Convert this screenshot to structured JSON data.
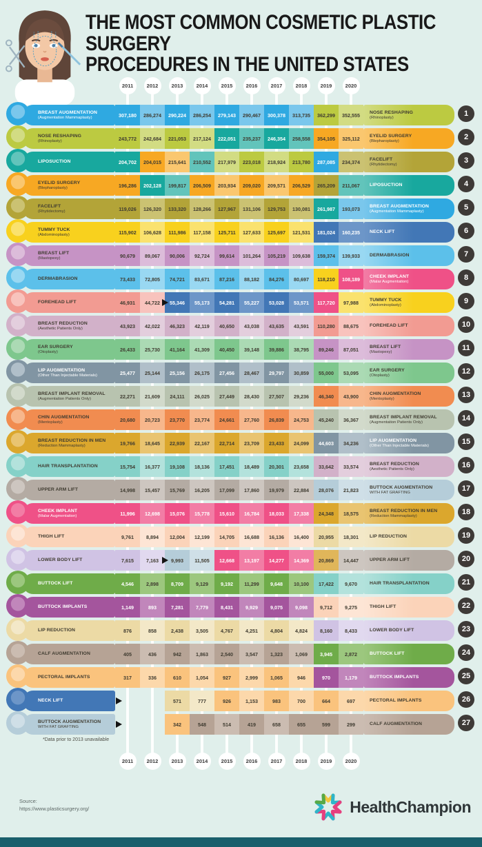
{
  "title": {
    "line1": "THE MOST COMMON COSMETIC PLASTIC SURGERY",
    "line2": "PROCEDURES IN THE UNITED STATES"
  },
  "years": [
    "2011",
    "2012",
    "2013",
    "2014",
    "2015",
    "2016",
    "2017",
    "2018",
    "2019",
    "2020"
  ],
  "footnote": "*Data prior to 2013 unavailable",
  "source": {
    "label": "Source:",
    "url": "https://www.plasticsurgery.org/"
  },
  "brand": {
    "name": "HealthChampion"
  },
  "colors": {
    "background": "#e0efeb",
    "footer_bar": "#1a5f6c",
    "rank_badge": "#3e3a37",
    "column_line": "#ffffff"
  },
  "chart_data": {
    "type": "table",
    "title": "The Most Common Cosmetic Plastic Surgery Procedures in the United States",
    "years": [
      "2011",
      "2012",
      "2013",
      "2014",
      "2015",
      "2016",
      "2017",
      "2018",
      "2019",
      "2020"
    ],
    "note": "Bump-ranking chart: each row is a rank lane; left label = procedure at that rank in 2011, right label + number = procedure at that rank in 2020. Cell values are annual procedure counts shown in each lane.",
    "rows": [
      {
        "rank": 1,
        "icon": "breast-augmentation-icon",
        "name": "BREAST AUGMENTATION",
        "sub": "(Augmentation Mammaplasty)",
        "right_name": "NOSE RESHAPING",
        "right_sub": "(Rhinoplasty)",
        "color": "#2fa9e1",
        "light": "#7ac7ec",
        "right_color": "#bcca41",
        "right_light": "#d2dc83",
        "values": [
          "307,180",
          "286,274",
          "290,224",
          "286,254",
          "279,143",
          "290,467",
          "300,378",
          "313,735",
          "362,299",
          "352,555"
        ]
      },
      {
        "rank": 2,
        "icon": "nose-reshaping-icon",
        "name": "NOSE RESHAPING",
        "sub": "(Rhinoplasty)",
        "right_name": "EYELID SURGERY",
        "right_sub": "(Blepharoplasty)",
        "color": "#bcca41",
        "light": "#d2dc83",
        "right_color": "#f7a823",
        "right_light": "#fac76f",
        "values": [
          "243,772",
          "242,684",
          "221,053",
          "217,124",
          "222,051",
          "235,237",
          "246,354",
          "258,558",
          "354,105",
          "325,112"
        ],
        "cells": [
          "#bcca41",
          "#d2dc83",
          "#bcca41",
          "#d2dc83",
          "#18a89e",
          "#62c4bb",
          "#18a89e",
          "#62c4bb",
          "#f7a823",
          "#fac76f"
        ]
      },
      {
        "rank": 3,
        "icon": "liposuction-icon",
        "name": "LIPOSUCTION",
        "sub": "",
        "right_name": "FACELIFT",
        "right_sub": "(Rhytidectomy)",
        "color": "#18a89e",
        "light": "#62c4bb",
        "right_color": "#b3a438",
        "right_light": "#cbc272",
        "values": [
          "204,702",
          "204,015",
          "215,641",
          "210,552",
          "217,979",
          "223,018",
          "218,924",
          "213,780",
          "287,085",
          "234,374"
        ],
        "cells": [
          "#18a89e",
          "#f7a823",
          "#fac76f",
          "#62c4bb",
          "#d2dc83",
          "#bcca41",
          "#d2dc83",
          "#bcca41",
          "#2fa9e1",
          "#cbc272"
        ]
      },
      {
        "rank": 4,
        "icon": "eyelid-surgery-icon",
        "name": "EYELID SURGERY",
        "sub": "(Blepharoplasty)",
        "right_name": "LIPOSUCTION",
        "right_sub": "",
        "color": "#f7a823",
        "light": "#fac76f",
        "right_color": "#18a89e",
        "right_light": "#62c4bb",
        "values": [
          "196,286",
          "202,128",
          "199,817",
          "206,509",
          "203,934",
          "209,020",
          "209,571",
          "206,529",
          "265,209",
          "211,067"
        ],
        "cells": [
          "#f7a823",
          "#18a89e",
          "#62c4bb",
          "#f7a823",
          "#fac76f",
          "#f7a823",
          "#fac76f",
          "#f7a823",
          "#b3a438",
          "#62c4bb"
        ]
      },
      {
        "rank": 5,
        "icon": "facelift-icon",
        "name": "FACELIFT",
        "sub": "(Rhytidectomy)",
        "right_name": "BREAST AUGMENTATION",
        "right_sub": "(Augmentation Mammaplasty)",
        "color": "#b3a438",
        "light": "#cbc272",
        "right_color": "#2fa9e1",
        "right_light": "#7ac7ec",
        "values": [
          "119,026",
          "126,320",
          "133,320",
          "128,266",
          "127,967",
          "131,106",
          "129,753",
          "130,081",
          "261,987",
          "193,073"
        ],
        "cells": [
          "#b3a438",
          "#cbc272",
          "#b3a438",
          "#cbc272",
          "#b3a438",
          "#cbc272",
          "#b3a438",
          "#cbc272",
          "#18a89e",
          "#7ac7ec"
        ]
      },
      {
        "rank": 6,
        "icon": "tummy-tuck-icon",
        "name": "TUMMY TUCK",
        "sub": "(Abdominoplasty)",
        "right_name": "NECK LIFT",
        "right_sub": "",
        "color": "#f8d11e",
        "light": "#fae26e",
        "right_color": "#4277b6",
        "right_light": "#6d96c8",
        "values": [
          "115,902",
          "106,628",
          "111,986",
          "117,158",
          "125,711",
          "127,633",
          "125,697",
          "121,531",
          "181,024",
          "160,235"
        ]
      },
      {
        "rank": 7,
        "icon": "breast-lift-icon",
        "name": "BREAST LIFT",
        "sub": "(Mastopexy)",
        "right_name": "DERMABRASION",
        "right_sub": "",
        "color": "#c693c5",
        "light": "#dcbcda",
        "right_color": "#5cc0ea",
        "right_light": "#99d8f2",
        "values": [
          "90,679",
          "89,067",
          "90,006",
          "92,724",
          "99,614",
          "101,264",
          "105,219",
          "109,638",
          "159,374",
          "139,933"
        ]
      },
      {
        "rank": 8,
        "icon": "dermabrasion-icon",
        "name": "DERMABRASION",
        "sub": "",
        "right_name": "CHEEK IMPLANT",
        "right_sub": "(Malar Augmentation)",
        "color": "#5cc0ea",
        "light": "#99d8f2",
        "right_color": "#ef5187",
        "right_light": "#f27da5",
        "values": [
          "73,433",
          "72,805",
          "74,721",
          "83,671",
          "87,216",
          "88,182",
          "84,276",
          "80,697",
          "118,210",
          "108,189"
        ],
        "cells": [
          "#5cc0ea",
          "#99d8f2",
          "#5cc0ea",
          "#99d8f2",
          "#5cc0ea",
          "#99d8f2",
          "#5cc0ea",
          "#99d8f2",
          "#f8d11e",
          "#ef5187"
        ]
      },
      {
        "rank": 9,
        "icon": "forehead-lift-icon",
        "name": "FOREHEAD LIFT",
        "sub": "",
        "right_name": "TUMMY TUCK",
        "right_sub": "(Abdominoplasty)",
        "color": "#f29b92",
        "light": "#f8c3bd",
        "right_color": "#f8d11e",
        "right_light": "#fae26e",
        "marker": "cell",
        "values": [
          "46,931",
          "44,722",
          "55,346",
          "55,173",
          "54,281",
          "55,227",
          "53,028",
          "53,571",
          "117,720",
          "97,988"
        ],
        "cells": [
          "#f29b92",
          "#f8c3bd",
          "#4277b6",
          "#6d96c8",
          "#4277b6",
          "#6d96c8",
          "#4277b6",
          "#6d96c8",
          "#ef5187",
          "#fae26e"
        ]
      },
      {
        "rank": 10,
        "icon": "breast-reduction-icon",
        "name": "BREAST REDUCTION",
        "sub": "(Aesthetic Patients Only)",
        "right_name": "FOREHEAD LIFT",
        "right_sub": "",
        "color": "#d2b1c9",
        "light": "#e3cedd",
        "right_color": "#f29b92",
        "right_light": "#f8c3bd",
        "values": [
          "43,923",
          "42,022",
          "46,323",
          "42,119",
          "40,650",
          "43,038",
          "43,635",
          "43,591",
          "110,280",
          "88,675"
        ]
      },
      {
        "rank": 11,
        "icon": "ear-surgery-icon",
        "name": "EAR SURGERY",
        "sub": "(Otoplasty)",
        "right_name": "BREAST LIFT",
        "right_sub": "(Mastopexy)",
        "color": "#7ec78d",
        "light": "#abdab4",
        "right_color": "#c693c5",
        "right_light": "#dcbcda",
        "values": [
          "26,433",
          "25,730",
          "41,164",
          "41,309",
          "40,450",
          "39,148",
          "39,886",
          "38,795",
          "89,246",
          "87,051"
        ]
      },
      {
        "rank": 12,
        "icon": "lip-augmentation-icon",
        "name": "LIP AUGMENTATION",
        "sub": "(Other Than Injectable Materials)",
        "right_name": "EAR SURGERY",
        "right_sub": "(Otoplasty)",
        "color": "#8195a3",
        "light": "#b0bfc9",
        "right_color": "#7ec78d",
        "right_light": "#abdab4",
        "values": [
          "25,477",
          "25,144",
          "25,156",
          "26,175",
          "27,456",
          "28,467",
          "29,797",
          "30,859",
          "55,000",
          "53,095"
        ]
      },
      {
        "rank": 13,
        "icon": "breast-implant-removal-icon",
        "name": "BREAST IMPLANT REMOVAL",
        "sub": "(Augmentation Patients Only)",
        "right_name": "CHIN AUGMENTATION",
        "right_sub": "(Mentoplasty)",
        "color": "#b8c3af",
        "light": "#d2dacb",
        "right_color": "#f18c50",
        "right_light": "#f7b78c",
        "values": [
          "22,271",
          "21,609",
          "24,111",
          "26,025",
          "27,449",
          "28,430",
          "27,507",
          "29,236",
          "46,340",
          "43,900"
        ]
      },
      {
        "rank": 14,
        "icon": "chin-augmentation-icon",
        "name": "CHIN AUGMENTATION",
        "sub": "(Mentoplasty)",
        "right_name": "BREAST IMPLANT REMOVAL",
        "right_sub": "(Augmentation Patients Only)",
        "color": "#f18c50",
        "light": "#f7b78c",
        "right_color": "#b8c3af",
        "right_light": "#d2dacb",
        "values": [
          "20,680",
          "20,723",
          "23,770",
          "23,774",
          "24,661",
          "27,760",
          "26,839",
          "24,753",
          "45,240",
          "36,367"
        ]
      },
      {
        "rank": 15,
        "icon": "breast-reduction-in-men-icon",
        "name": "BREAST REDUCTION IN MEN",
        "sub": "(Reduction Mammaplasty)",
        "right_name": "LIP AUGMENTATION",
        "right_sub": "(Other Than Injectable Materials)",
        "color": "#dba72d",
        "light": "#e9c471",
        "right_color": "#8195a3",
        "right_light": "#b0bfc9",
        "values": [
          "19,766",
          "18,645",
          "22,939",
          "22,167",
          "22,714",
          "23,709",
          "23,433",
          "24,099",
          "44,603",
          "34,236"
        ]
      },
      {
        "rank": 16,
        "icon": "hair-transplantation-icon",
        "name": "HAIR TRANSPLANTATION",
        "sub": "",
        "right_name": "BREAST REDUCTION",
        "right_sub": "(Aesthetic Patients Only)",
        "color": "#85d1c8",
        "light": "#b3e2dc",
        "right_color": "#d2b1c9",
        "right_light": "#e3cedd",
        "values": [
          "15,754",
          "16,377",
          "19,108",
          "18,136",
          "17,451",
          "18,489",
          "20,301",
          "23,658",
          "33,642",
          "33,574"
        ]
      },
      {
        "rank": 17,
        "icon": "upper-arm-lift-icon",
        "name": "UPPER ARM LIFT",
        "sub": "",
        "right_name": "BUTTOCK AUGMENTATION",
        "right_sub": "WITH FAT GRAFTING",
        "color": "#b4aba3",
        "light": "#cdc6c0",
        "right_color": "#b5cdd9",
        "right_light": "#cfdfe7",
        "values": [
          "14,998",
          "15,457",
          "15,769",
          "16,205",
          "17,099",
          "17,860",
          "19,979",
          "22,884",
          "28,076",
          "21,823"
        ]
      },
      {
        "rank": 18,
        "icon": "cheek-implant-icon",
        "name": "CHEEK IMPLANT",
        "sub": "(Malar Augmentation)",
        "right_name": "BREAST REDUCTION IN MEN",
        "right_sub": "(Reduction Mammaplasty)",
        "color": "#ef5187",
        "light": "#f27da5",
        "right_color": "#dba72d",
        "right_light": "#e9c471",
        "values": [
          "11,996",
          "12,698",
          "15,076",
          "15,778",
          "15,610",
          "16,784",
          "18,033",
          "17,338",
          "24,348",
          "18,575"
        ]
      },
      {
        "rank": 19,
        "icon": "thigh-lift-icon",
        "name": "THIGH LIFT",
        "sub": "",
        "right_name": "LIP REDUCTION",
        "right_sub": "",
        "color": "#fbd3b9",
        "light": "#fde5d5",
        "right_color": "#ecdaa5",
        "right_light": "#f3e8c8",
        "values": [
          "9,761",
          "8,894",
          "12,004",
          "12,199",
          "14,705",
          "16,688",
          "16,136",
          "16,400",
          "20,955",
          "18,301"
        ]
      },
      {
        "rank": 20,
        "icon": "lower-body-lift-icon",
        "name": "LOWER BODY LIFT",
        "sub": "",
        "right_name": "UPPER ARM LIFT",
        "right_sub": "",
        "color": "#d0c3e4",
        "light": "#e1d9ef",
        "right_color": "#b4aba3",
        "right_light": "#cdc6c0",
        "marker": "cell",
        "values": [
          "7,615",
          "7,163",
          "9,993",
          "11,505",
          "12,668",
          "13,197",
          "14,277",
          "14,369",
          "20,869",
          "14,447"
        ],
        "cells": [
          "#d0c3e4",
          "#e1d9ef",
          "#b5cdd9",
          "#cfdfe7",
          "#ef5187",
          "#f27da5",
          "#ef5187",
          "#f27da5",
          "#e0b65a",
          "#cdc6c0"
        ]
      },
      {
        "rank": 21,
        "icon": "buttock-lift-icon",
        "name": "BUTTOCK LIFT",
        "sub": "",
        "right_name": "HAIR TRANSPLANTATION",
        "right_sub": "",
        "color": "#6fac49",
        "light": "#9cc77e",
        "right_color": "#85d1c8",
        "right_light": "#b3e2dc",
        "values": [
          "4,546",
          "2,898",
          "8,709",
          "9,129",
          "9,192",
          "11,299",
          "9,648",
          "10,100",
          "17,422",
          "9,670"
        ]
      },
      {
        "rank": 22,
        "icon": "buttock-implants-icon",
        "name": "BUTTOCK IMPLANTS",
        "sub": "",
        "right_name": "THIGH LIFT",
        "right_sub": "",
        "color": "#a4559d",
        "light": "#c186bb",
        "right_color": "#fbd3b9",
        "right_light": "#fde5d5",
        "values": [
          "1,149",
          "893",
          "7,281",
          "7,779",
          "8,431",
          "9,929",
          "9,075",
          "9,098",
          "9,712",
          "9,275"
        ]
      },
      {
        "rank": 23,
        "icon": "lip-reduction-icon",
        "name": "LIP REDUCTION",
        "sub": "",
        "right_name": "LOWER BODY LIFT",
        "right_sub": "",
        "color": "#ecdaa5",
        "light": "#f3e8c8",
        "right_color": "#d0c3e4",
        "right_light": "#e1d9ef",
        "values": [
          "876",
          "858",
          "2,438",
          "3,505",
          "4,767",
          "4,251",
          "4,804",
          "4,824",
          "8,160",
          "8,433"
        ]
      },
      {
        "rank": 24,
        "icon": "calf-augmentation-icon",
        "name": "CALF AUGMENTATION",
        "sub": "",
        "right_name": "BUTTOCK LIFT",
        "right_sub": "",
        "color": "#b6a395",
        "light": "#cbbcb1",
        "right_color": "#6fac49",
        "right_light": "#9cc77e",
        "values": [
          "405",
          "436",
          "942",
          "1,863",
          "2,540",
          "3,547",
          "1,323",
          "1,069",
          "3,945",
          "2,872"
        ]
      },
      {
        "rank": 25,
        "icon": "pectoral-implants-icon",
        "name": "PECTORAL IMPLANTS",
        "sub": "",
        "right_name": "BUTTOCK IMPLANTS",
        "right_sub": "",
        "color": "#fac37d",
        "light": "#fcd8ab",
        "right_color": "#a4559d",
        "right_light": "#c186bb",
        "values": [
          "317",
          "336",
          "610",
          "1,054",
          "927",
          "2,999",
          "1,065",
          "946",
          "970",
          "1,179"
        ]
      },
      {
        "rank": 26,
        "icon": "neck-lift-icon",
        "name": "NECK LIFT",
        "sub": "",
        "right_name": "PECTORAL IMPLANTS",
        "right_sub": "",
        "color": "#4277b6",
        "light": "#6d96c8",
        "right_color": "#fac37d",
        "right_light": "#fcd8ab",
        "marker": "label",
        "values": [
          "",
          "",
          "571",
          "777",
          "926",
          "1,153",
          "983",
          "700",
          "664",
          "697"
        ],
        "cells": [
          "",
          "",
          "#ecdaa5",
          "#f3e8c8",
          "#fac37d",
          "#fcd8ab",
          "#fac37d",
          "#fcd8ab",
          "#fac37d",
          "#fcd8ab"
        ]
      },
      {
        "rank": 27,
        "icon": "buttock-augmentation-fat-grafting-icon",
        "name": "BUTTOCK AUGMENTATION",
        "sub": "WITH FAT GRAFTING",
        "right_name": "CALF AUGMENTATION",
        "right_sub": "",
        "color": "#b5cdd9",
        "light": "#cfdfe7",
        "right_color": "#b6a395",
        "right_light": "#cbbcb1",
        "marker": "label",
        "values": [
          "",
          "",
          "342",
          "548",
          "514",
          "419",
          "658",
          "655",
          "599",
          "299"
        ],
        "cells": [
          "",
          "",
          "#fac37d",
          "#b6a395",
          "#cbbcb1",
          "#b6a395",
          "#cbbcb1",
          "#b6a395",
          "#b6a395",
          "#cbbcb1"
        ]
      }
    ]
  }
}
